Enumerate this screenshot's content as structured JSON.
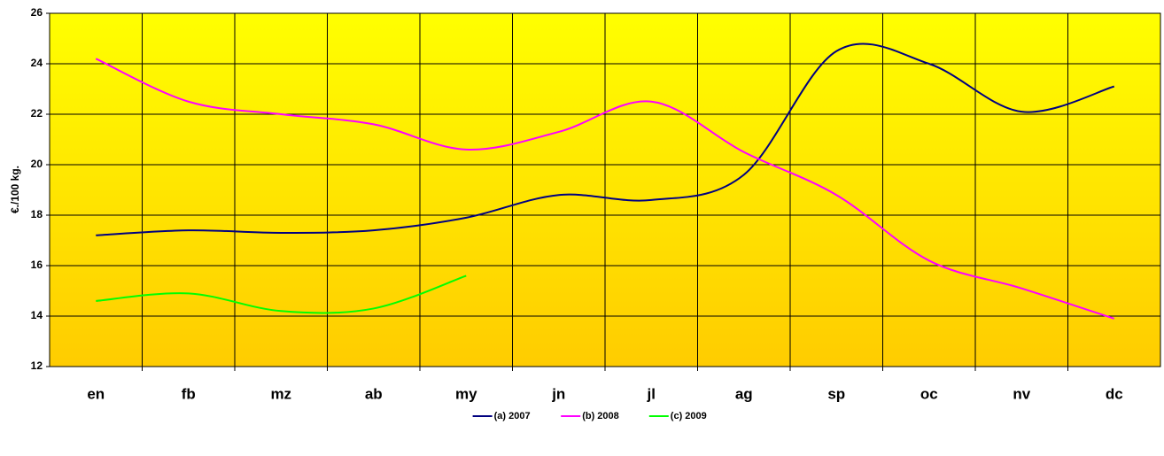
{
  "chart_data": {
    "type": "line",
    "y_label": "€./100 kg.",
    "categories": [
      "en",
      "fb",
      "mz",
      "ab",
      "my",
      "jn",
      "jl",
      "ag",
      "sp",
      "oc",
      "nv",
      "dc"
    ],
    "series": [
      {
        "name": "(a) 2007",
        "color": "#000080",
        "values": [
          17.2,
          17.4,
          17.3,
          17.4,
          17.9,
          18.8,
          18.6,
          19.6,
          24.5,
          24.0,
          22.1,
          23.1
        ]
      },
      {
        "name": "(b) 2008",
        "color": "#ff00ff",
        "values": [
          24.2,
          22.5,
          22.0,
          21.6,
          20.6,
          21.3,
          22.5,
          20.5,
          18.8,
          16.2,
          15.1,
          13.9
        ]
      },
      {
        "name": "(c) 2009",
        "color": "#00ff00",
        "values": [
          14.6,
          14.9,
          14.2,
          14.3,
          15.6,
          null,
          null,
          null,
          null,
          null,
          null,
          null
        ]
      }
    ],
    "ylim": [
      12,
      26
    ],
    "yticks": [
      12,
      14,
      16,
      18,
      20,
      22,
      24,
      26
    ],
    "grid": true,
    "legend": "bottom"
  }
}
